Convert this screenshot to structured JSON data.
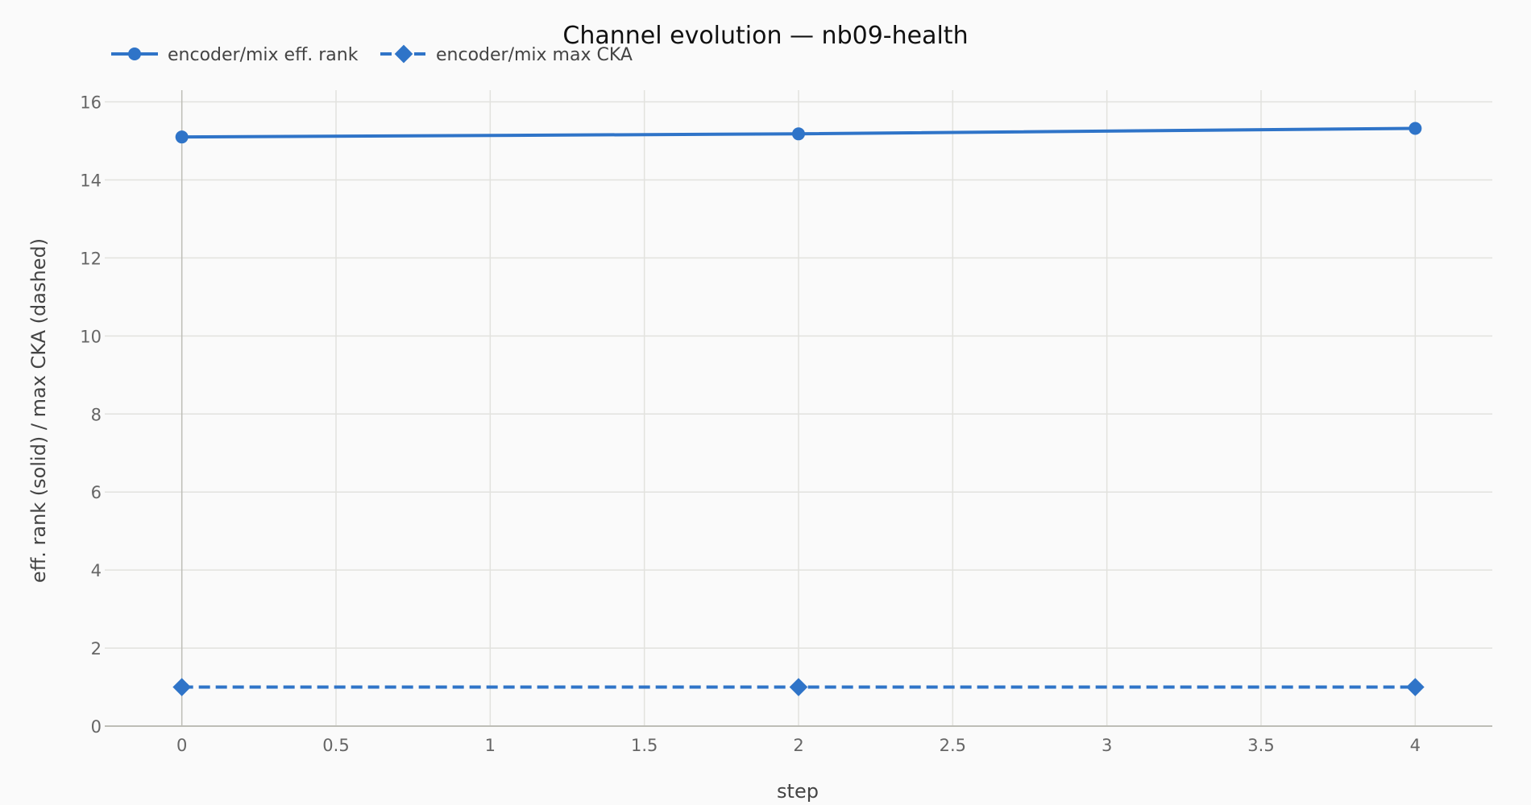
{
  "chart_data": {
    "type": "line",
    "title": "Channel evolution — nb09-health",
    "xlabel": "step",
    "ylabel": "eff. rank (solid) / max CKA (dashed)",
    "xlim": [
      -0.25,
      4.25
    ],
    "ylim": [
      0,
      16.3
    ],
    "x_ticks": [
      0,
      0.5,
      1,
      1.5,
      2,
      2.5,
      3,
      3.5,
      4
    ],
    "x_tick_labels": [
      "0",
      "0.5",
      "1",
      "1.5",
      "2",
      "2.5",
      "3",
      "3.5",
      "4"
    ],
    "y_ticks": [
      0,
      2,
      4,
      6,
      8,
      10,
      12,
      14,
      16
    ],
    "y_tick_labels": [
      "0",
      "2",
      "4",
      "6",
      "8",
      "10",
      "12",
      "14",
      "16"
    ],
    "grid": true,
    "legend_position": "top-left",
    "series": [
      {
        "name": "encoder/mix eff. rank",
        "x": [
          0,
          2,
          4
        ],
        "y": [
          15.1,
          15.18,
          15.32
        ],
        "color": "#2f74c8",
        "line": "solid",
        "marker": "circle"
      },
      {
        "name": "encoder/mix max CKA",
        "x": [
          0,
          2,
          4
        ],
        "y": [
          1.0,
          1.0,
          1.0
        ],
        "color": "#2f74c8",
        "line": "dashed",
        "marker": "diamond"
      }
    ]
  }
}
